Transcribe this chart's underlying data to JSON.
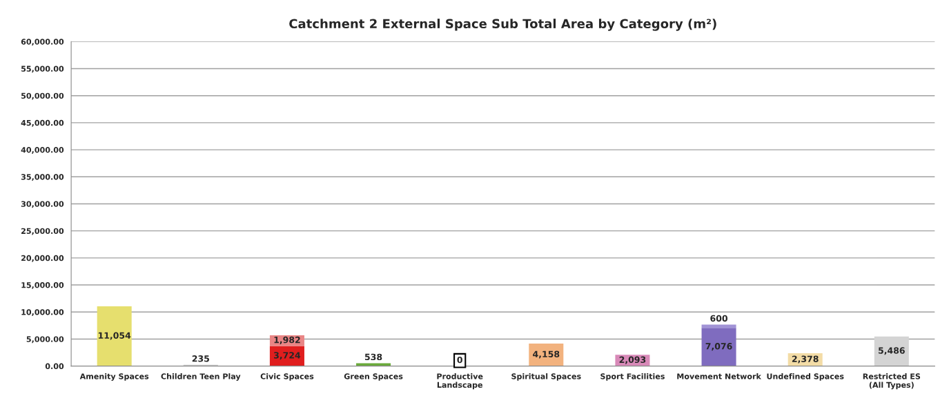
{
  "chart_data": {
    "type": "bar",
    "title": "Catchment 2 External Space Sub Total Area by Category (m²)",
    "stacked": true,
    "grid": "y",
    "legend": false,
    "categories": [
      "Amenity Spaces",
      "Children Teen Play",
      "Civic Spaces",
      "Green Spaces",
      "Productive\nLandscape",
      "Spiritual Spaces",
      "Sport Facilities",
      "Movement Network",
      "Undefined Spaces",
      "Restricted ES\n(All Types)"
    ],
    "series": [
      {
        "colors": [
          "#e6df6e",
          "#c8c8c8",
          "#e01e1e",
          "#6aaa3a",
          "#ffffff",
          "#f2b27e",
          "#d889b8",
          "#7f6cbf",
          "#f3dca6",
          "#d4d4d4"
        ],
        "values": [
          11054,
          235,
          3724,
          538,
          0,
          4158,
          2093,
          7076,
          2378,
          5486
        ],
        "value_labels": [
          "11,054",
          "235",
          "3,724",
          "538",
          "0",
          "4,158",
          "2,093",
          "7,076",
          "2,378",
          "5,486"
        ]
      },
      {
        "colors": [
          null,
          null,
          "#e98585",
          null,
          null,
          null,
          null,
          "#a193d6",
          null,
          null
        ],
        "values": [
          null,
          null,
          1982,
          null,
          null,
          null,
          null,
          600,
          null,
          null
        ],
        "value_labels": [
          null,
          null,
          "1,982",
          null,
          null,
          null,
          null,
          "600",
          null,
          null
        ]
      }
    ],
    "ylim": [
      0,
      60000
    ],
    "yticks": [
      {
        "value": 0,
        "label": "0.00"
      },
      {
        "value": 5000,
        "label": "5,000.00"
      },
      {
        "value": 10000,
        "label": "10,000.00"
      },
      {
        "value": 15000,
        "label": "15,000.00"
      },
      {
        "value": 20000,
        "label": "20,000.00"
      },
      {
        "value": 25000,
        "label": "25,000.00"
      },
      {
        "value": 30000,
        "label": "30,000.00"
      },
      {
        "value": 35000,
        "label": "35,000.00"
      },
      {
        "value": 40000,
        "label": "40,000.00"
      },
      {
        "value": 45000,
        "label": "45,000.00"
      },
      {
        "value": 50000,
        "label": "50,000.00"
      },
      {
        "value": 55000,
        "label": "55,000.00"
      },
      {
        "value": 60000,
        "label": "60,000.00"
      }
    ]
  }
}
